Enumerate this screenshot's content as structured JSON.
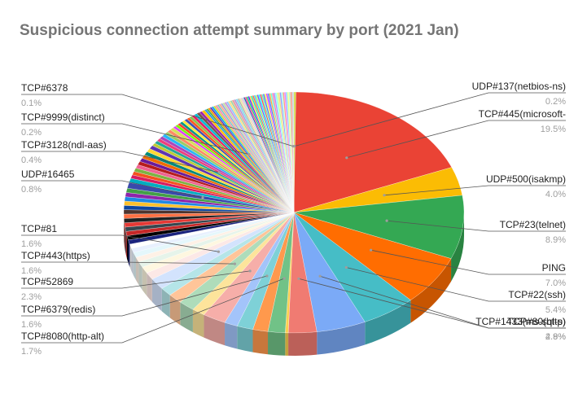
{
  "chart_data": {
    "type": "pie",
    "title": "Suspicious connection attempt summary by port  (2021 Jan)",
    "slices": [
      {
        "label": "UDP#137(netbios-ns)",
        "value": 0.2,
        "display": "0.2%",
        "color": "#cddc39"
      },
      {
        "label": "TCP#445(microsoft-",
        "value": 19.5,
        "display": "19.5%",
        "color": "#ea4335"
      },
      {
        "label": "UDP#500(isakmp)",
        "value": 4.0,
        "display": "4.0%",
        "color": "#fbbc04"
      },
      {
        "label": "TCP#23(telnet)",
        "value": 8.9,
        "display": "8.9%",
        "color": "#34a853"
      },
      {
        "label": "PING",
        "value": 7.0,
        "display": "7.0%",
        "color": "#ff6d01"
      },
      {
        "label": "TCP#22(ssh)",
        "value": 5.4,
        "display": "5.4%",
        "color": "#46bdc6"
      },
      {
        "label": "TCP#1433(ms-sql-s)",
        "value": 4.9,
        "display": "4.9%",
        "color": "#7baaf7"
      },
      {
        "label": "TCP#80(http)",
        "value": 2.8,
        "display": "2.8%",
        "color": "#f07b72"
      },
      {
        "label": "",
        "value": 0.3,
        "display": "",
        "color": "#fcd04f"
      },
      {
        "label": "TCP#8080(http-alt)",
        "value": 1.7,
        "display": "1.7%",
        "color": "#71c287"
      },
      {
        "label": "",
        "value": 1.5,
        "display": "",
        "color": "#ff994d"
      },
      {
        "label": "TCP#6379(redis)",
        "value": 1.6,
        "display": "1.6%",
        "color": "#7ed1d7"
      },
      {
        "label": "",
        "value": 1.3,
        "display": "",
        "color": "#a3c4fa"
      },
      {
        "label": "TCP#52869",
        "value": 2.3,
        "display": "2.3%",
        "color": "#f6aea9"
      },
      {
        "label": "",
        "value": 1.3,
        "display": "",
        "color": "#fde49b"
      },
      {
        "label": "TCP#443(https)",
        "value": 1.6,
        "display": "1.6%",
        "color": "#aedcba"
      },
      {
        "label": "",
        "value": 1.4,
        "display": "",
        "color": "#ffc599"
      },
      {
        "label": "",
        "value": 1.2,
        "display": "",
        "color": "#b5e5e8"
      },
      {
        "label": "TCP#81",
        "value": 1.6,
        "display": "1.6%",
        "color": "#d3e3fd"
      },
      {
        "label": "",
        "value": 1.0,
        "display": "",
        "color": "#fce8e6"
      },
      {
        "label": "",
        "value": 0.9,
        "display": "",
        "color": "#fef7e0"
      },
      {
        "label": "",
        "value": 0.8,
        "display": "",
        "color": "#e6f4ea"
      },
      {
        "label": "",
        "value": 0.7,
        "display": "",
        "color": "#fef1e6"
      },
      {
        "label": "",
        "value": 0.7,
        "display": "",
        "color": "#e4f7fb"
      },
      {
        "label": "",
        "value": 0.6,
        "display": "",
        "color": "#e8f0fe"
      },
      {
        "label": "",
        "value": 0.6,
        "display": "",
        "color": "#ffffff"
      },
      {
        "label": "",
        "value": 0.6,
        "display": "",
        "color": "#1a237e"
      },
      {
        "label": "",
        "value": 0.6,
        "display": "",
        "color": "#000000"
      },
      {
        "label": "",
        "value": 0.6,
        "display": "",
        "color": "#c62828"
      },
      {
        "label": "",
        "value": 0.6,
        "display": "",
        "color": "#37474f"
      },
      {
        "label": "",
        "value": 0.6,
        "display": "",
        "color": "#e53935"
      },
      {
        "label": "",
        "value": 0.6,
        "display": "",
        "color": "#212121"
      },
      {
        "label": "",
        "value": 0.6,
        "display": "",
        "color": "#ff7043"
      },
      {
        "label": "",
        "value": 0.6,
        "display": "",
        "color": "#4e342e"
      },
      {
        "label": "",
        "value": 0.6,
        "display": "",
        "color": "#0d47a1"
      },
      {
        "label": "",
        "value": 0.6,
        "display": "",
        "color": "#fbc02d"
      },
      {
        "label": "",
        "value": 0.6,
        "display": "",
        "color": "#1e88e5"
      },
      {
        "label": "",
        "value": 0.6,
        "display": "",
        "color": "#8e24aa"
      },
      {
        "label": "",
        "value": 0.6,
        "display": "",
        "color": "#43a047"
      },
      {
        "label": "UDP#16465",
        "value": 0.8,
        "display": "0.8%",
        "color": "#3949ab"
      },
      {
        "label": "",
        "value": 0.6,
        "display": "",
        "color": "#00acc1"
      },
      {
        "label": "",
        "value": 0.5,
        "display": "",
        "color": "#d81b60"
      },
      {
        "label": "",
        "value": 0.5,
        "display": "",
        "color": "#f4511e"
      },
      {
        "label": "",
        "value": 0.5,
        "display": "",
        "color": "#7cb342"
      },
      {
        "label": "",
        "value": 0.5,
        "display": "",
        "color": "#f06292"
      },
      {
        "label": "",
        "value": 0.5,
        "display": "",
        "color": "#b71c1c"
      },
      {
        "label": "",
        "value": 0.5,
        "display": "",
        "color": "#6a1b9a"
      },
      {
        "label": "",
        "value": 0.5,
        "display": "",
        "color": "#ef6c00"
      },
      {
        "label": "",
        "value": 0.5,
        "display": "",
        "color": "#00897b"
      },
      {
        "label": "",
        "value": 0.5,
        "display": "",
        "color": "#fdd835"
      },
      {
        "label": "",
        "value": 0.5,
        "display": "",
        "color": "#5e35b1"
      },
      {
        "label": "",
        "value": 0.4,
        "display": "",
        "color": "#c0ca33"
      },
      {
        "label": "",
        "value": 0.4,
        "display": "",
        "color": "#26a69a"
      },
      {
        "label": "TCP#3128(ndl-aas)",
        "value": 0.4,
        "display": "0.4%",
        "color": "#ec407a"
      },
      {
        "label": "",
        "value": 0.4,
        "display": "",
        "color": "#ab47bc"
      },
      {
        "label": "",
        "value": 0.4,
        "display": "",
        "color": "#29b6f6"
      },
      {
        "label": "",
        "value": 0.4,
        "display": "",
        "color": "#9ccc65"
      },
      {
        "label": "",
        "value": 0.4,
        "display": "",
        "color": "#ff8a65"
      },
      {
        "label": "",
        "value": 0.4,
        "display": "",
        "color": "#d4e157"
      },
      {
        "label": "",
        "value": 0.3,
        "display": "",
        "color": "#e040fb"
      },
      {
        "label": "",
        "value": 0.3,
        "display": "",
        "color": "#76ff03"
      },
      {
        "label": "",
        "value": 0.3,
        "display": "",
        "color": "#f44336"
      },
      {
        "label": "",
        "value": 0.3,
        "display": "",
        "color": "#009688"
      },
      {
        "label": "",
        "value": 0.3,
        "display": "",
        "color": "#ffeb3b"
      },
      {
        "label": "",
        "value": 0.3,
        "display": "",
        "color": "#3f51b5"
      },
      {
        "label": "",
        "value": 0.3,
        "display": "",
        "color": "#ff5722"
      },
      {
        "label": "",
        "value": 0.3,
        "display": "",
        "color": "#8bc34a"
      },
      {
        "label": "",
        "value": 0.3,
        "display": "",
        "color": "#e91e63"
      },
      {
        "label": "",
        "value": 0.3,
        "display": "",
        "color": "#00bcd4"
      },
      {
        "label": "",
        "value": 0.3,
        "display": "",
        "color": "#795548"
      },
      {
        "label": "",
        "value": 0.3,
        "display": "",
        "color": "#9c27b0"
      },
      {
        "label": "",
        "value": 0.3,
        "display": "",
        "color": "#ffc107"
      },
      {
        "label": "",
        "value": 0.2,
        "display": "",
        "color": "#2196f3"
      },
      {
        "label": "",
        "value": 0.2,
        "display": "",
        "color": "#4caf50"
      },
      {
        "label": "",
        "value": 0.2,
        "display": "",
        "color": "#ff9800"
      },
      {
        "label": "",
        "value": 0.2,
        "display": "",
        "color": "#673ab7"
      },
      {
        "label": "TCP#9999(distinct)",
        "value": 0.2,
        "display": "0.2%",
        "color": "#03a9f4"
      },
      {
        "label": "",
        "value": 0.2,
        "display": "",
        "color": "#cddc39"
      },
      {
        "label": "",
        "value": 0.2,
        "display": "",
        "color": "#f48fb1"
      },
      {
        "label": "",
        "value": 0.2,
        "display": "",
        "color": "#80cbc4"
      },
      {
        "label": "",
        "value": 0.2,
        "display": "",
        "color": "#ffab91"
      },
      {
        "label": "",
        "value": 0.2,
        "display": "",
        "color": "#9fa8da"
      },
      {
        "label": "",
        "value": 0.2,
        "display": "",
        "color": "#c5e1a5"
      },
      {
        "label": "",
        "value": 0.2,
        "display": "",
        "color": "#ce93d8"
      },
      {
        "label": "",
        "value": 0.2,
        "display": "",
        "color": "#90caf9"
      },
      {
        "label": "",
        "value": 0.2,
        "display": "",
        "color": "#ffe082"
      },
      {
        "label": "",
        "value": 0.2,
        "display": "",
        "color": "#a5d6a7"
      },
      {
        "label": "",
        "value": 0.2,
        "display": "",
        "color": "#ef9a9a"
      },
      {
        "label": "",
        "value": 0.2,
        "display": "",
        "color": "#b39ddb"
      },
      {
        "label": "",
        "value": 0.2,
        "display": "",
        "color": "#80deea"
      },
      {
        "label": "",
        "value": 0.15,
        "display": "",
        "color": "#bcaaa4"
      },
      {
        "label": "",
        "value": 0.15,
        "display": "",
        "color": "#e6ee9c"
      },
      {
        "label": "",
        "value": 0.15,
        "display": "",
        "color": "#f8bbd0"
      },
      {
        "label": "",
        "value": 0.15,
        "display": "",
        "color": "#b2dfdb"
      },
      {
        "label": "",
        "value": 0.15,
        "display": "",
        "color": "#3f51b5"
      },
      {
        "label": "",
        "value": 0.15,
        "display": "",
        "color": "#ff4081"
      },
      {
        "label": "",
        "value": 0.15,
        "display": "",
        "color": "#00e676"
      },
      {
        "label": "",
        "value": 0.15,
        "display": "",
        "color": "#651fff"
      },
      {
        "label": "",
        "value": 0.15,
        "display": "",
        "color": "#ffd740"
      },
      {
        "label": "",
        "value": 0.15,
        "display": "",
        "color": "#1de9b6"
      },
      {
        "label": "",
        "value": 0.15,
        "display": "",
        "color": "#ff6e40"
      },
      {
        "label": "",
        "value": 0.15,
        "display": "",
        "color": "#40c4ff"
      },
      {
        "label": "",
        "value": 0.15,
        "display": "",
        "color": "#b2ff59"
      },
      {
        "label": "",
        "value": 0.15,
        "display": "",
        "color": "#7c4dff"
      },
      {
        "label": "",
        "value": 0.15,
        "display": "",
        "color": "#18ffff"
      },
      {
        "label": "",
        "value": 0.15,
        "display": "",
        "color": "#ff5252"
      },
      {
        "label": "",
        "value": 0.15,
        "display": "",
        "color": "#69f0ae"
      },
      {
        "label": "",
        "value": 0.15,
        "display": "",
        "color": "#536dfe"
      },
      {
        "label": "",
        "value": 0.15,
        "display": "",
        "color": "#eeff41"
      },
      {
        "label": "",
        "value": 0.15,
        "display": "",
        "color": "#e040fb"
      },
      {
        "label": "",
        "value": 0.15,
        "display": "",
        "color": "#448aff"
      },
      {
        "label": "",
        "value": 0.15,
        "display": "",
        "color": "#ffab40"
      },
      {
        "label": "",
        "value": 0.15,
        "display": "",
        "color": "#64ffda"
      },
      {
        "label": "",
        "value": 0.15,
        "display": "",
        "color": "#ff80ab"
      },
      {
        "label": "",
        "value": 0.15,
        "display": "",
        "color": "#b388ff"
      },
      {
        "label": "",
        "value": 0.15,
        "display": "",
        "color": "#84ffff"
      },
      {
        "label": "",
        "value": 0.15,
        "display": "",
        "color": "#ccff90"
      },
      {
        "label": "",
        "value": 0.15,
        "display": "",
        "color": "#ffd180"
      },
      {
        "label": "",
        "value": 0.15,
        "display": "",
        "color": "#8c9eff"
      },
      {
        "label": "",
        "value": 0.15,
        "display": "",
        "color": "#a7ffeb"
      },
      {
        "label": "",
        "value": 0.15,
        "display": "",
        "color": "#ff9e80"
      },
      {
        "label": "",
        "value": 0.15,
        "display": "",
        "color": "#ea80fc"
      },
      {
        "label": "",
        "value": 0.15,
        "display": "",
        "color": "#80d8ff"
      },
      {
        "label": "",
        "value": 0.15,
        "display": "",
        "color": "#f4ff81"
      },
      {
        "label": "",
        "value": 0.15,
        "display": "",
        "color": "#b9f6ca"
      },
      {
        "label": "",
        "value": 0.15,
        "display": "",
        "color": "#ff8a80"
      },
      {
        "label": "TCP#6378",
        "value": 0.1,
        "display": "0.1%",
        "color": "#b0bec5"
      },
      {
        "label": "",
        "value": 0.1,
        "display": "",
        "color": "#cfd8dc"
      }
    ]
  }
}
